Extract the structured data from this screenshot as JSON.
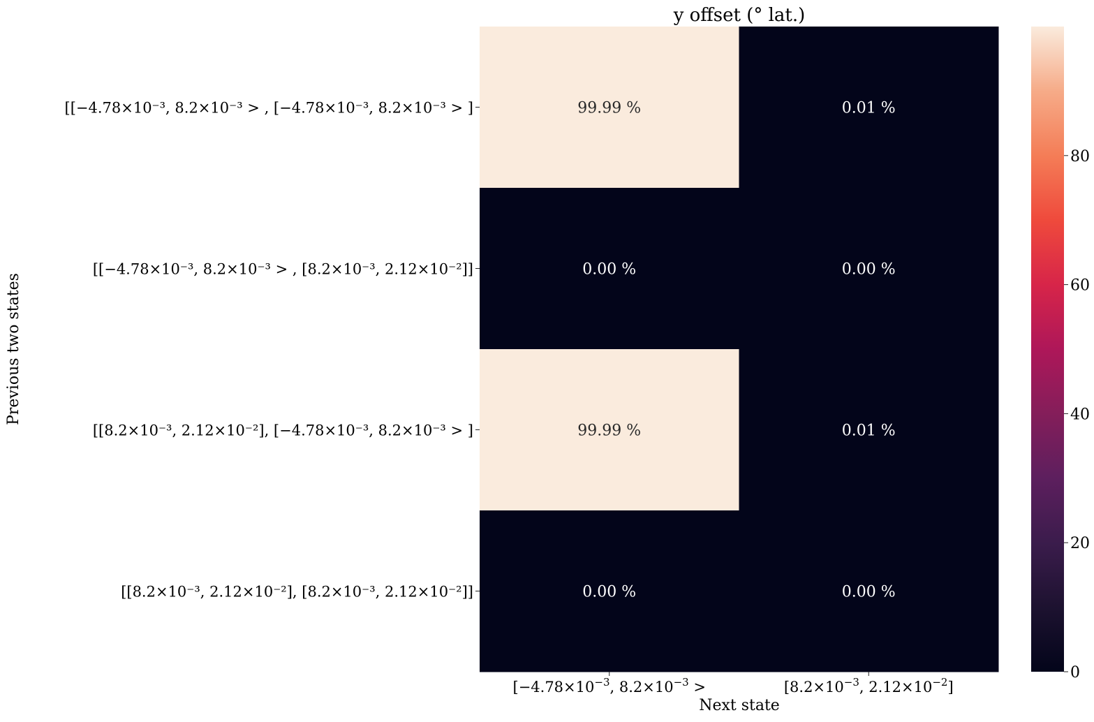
{
  "chart_data": {
    "type": "heatmap",
    "title": "y offset (° lat.)",
    "xlabel": "Next state",
    "ylabel": "Previous two states",
    "x_categories": [
      {
        "base": "[−4.78×10",
        "e1": "−3",
        "mid": ", 8.2×10",
        "e2": "−3",
        "tail": " >"
      },
      {
        "base": "[8.2×10",
        "e1": "−3",
        "mid": ", 2.12×10",
        "e2": "−2",
        "tail": "]"
      }
    ],
    "y_categories": [
      "[[−4.78×10⁻³, 8.2×10⁻³ > , [−4.78×10⁻³, 8.2×10⁻³ > ]",
      "[[−4.78×10⁻³, 8.2×10⁻³ > , [8.2×10⁻³, 2.12×10⁻²]]",
      "[[8.2×10⁻³, 2.12×10⁻²], [−4.78×10⁻³, 8.2×10⁻³ > ]",
      "[[8.2×10⁻³, 2.12×10⁻²], [8.2×10⁻³, 2.12×10⁻²]]"
    ],
    "values": [
      [
        99.99,
        0.01
      ],
      [
        0.0,
        0.0
      ],
      [
        99.99,
        0.01
      ],
      [
        0.0,
        0.0
      ]
    ],
    "annotations": [
      [
        "99.99 %",
        "0.01 %"
      ],
      [
        "0.00 %",
        "0.00 %"
      ],
      [
        "99.99 %",
        "0.01 %"
      ],
      [
        "0.00 %",
        "0.00 %"
      ]
    ],
    "colorbar": {
      "range": [
        0,
        100
      ],
      "ticks": [
        0,
        20,
        40,
        60,
        80
      ],
      "colormap": "rocket"
    }
  }
}
